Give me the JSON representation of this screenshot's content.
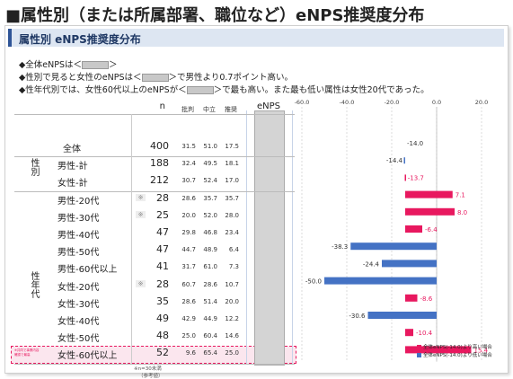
{
  "page": {
    "title": "■属性別（または所属部署、職位など）eNPS推奨度分布"
  },
  "card": {
    "title": "属性別 eNPS推奨度分布"
  },
  "notes": [
    {
      "pre": "◆全体eNPSは＜",
      "post": "＞"
    },
    {
      "pre": "◆性別で見ると女性のeNPSは＜",
      "post": "＞で男性より0.7ポイント高い。"
    },
    {
      "pre": "◆性年代別では、女性60代以上のeNPSが＜",
      "post": "＞で最も高い。また最も低い属性は女性20代であった。"
    }
  ],
  "table": {
    "headers": {
      "n": "n",
      "hihan": "批判",
      "churitsu": "中立",
      "suisho": "推奨",
      "enps": "eNPS"
    },
    "groups": {
      "gender": "性別",
      "age": "性年代"
    },
    "small_sample_mark": "※",
    "footnote_left": "※n=30未満\n（参考値）",
    "side_note": "※共同で事業内容確認で最高",
    "rows": [
      {
        "label": "全体",
        "n": 400,
        "hihan": "31.5",
        "churitsu": "51.0",
        "suisho": "17.5",
        "small": false
      },
      {
        "label": "男性-計",
        "n": 188,
        "hihan": "32.4",
        "churitsu": "49.5",
        "suisho": "18.1",
        "small": false
      },
      {
        "label": "女性-計",
        "n": 212,
        "hihan": "30.7",
        "churitsu": "52.4",
        "suisho": "17.0",
        "small": false
      },
      {
        "label": "男性-20代",
        "n": 28,
        "hihan": "28.6",
        "churitsu": "35.7",
        "suisho": "35.7",
        "small": true
      },
      {
        "label": "男性-30代",
        "n": 25,
        "hihan": "20.0",
        "churitsu": "52.0",
        "suisho": "28.0",
        "small": true
      },
      {
        "label": "男性-40代",
        "n": 47,
        "hihan": "29.8",
        "churitsu": "46.8",
        "suisho": "23.4",
        "small": false
      },
      {
        "label": "男性-50代",
        "n": 47,
        "hihan": "44.7",
        "churitsu": "48.9",
        "suisho": "6.4",
        "small": false
      },
      {
        "label": "男性-60代以上",
        "n": 41,
        "hihan": "31.7",
        "churitsu": "61.0",
        "suisho": "7.3",
        "small": false
      },
      {
        "label": "女性-20代",
        "n": 28,
        "hihan": "60.7",
        "churitsu": "28.6",
        "suisho": "10.7",
        "small": true
      },
      {
        "label": "女性-30代",
        "n": 35,
        "hihan": "28.6",
        "churitsu": "51.4",
        "suisho": "20.0",
        "small": false
      },
      {
        "label": "女性-40代",
        "n": 49,
        "hihan": "42.9",
        "churitsu": "44.9",
        "suisho": "12.2",
        "small": false
      },
      {
        "label": "女性-50代",
        "n": 48,
        "hihan": "25.0",
        "churitsu": "60.4",
        "suisho": "14.6",
        "small": false
      },
      {
        "label": "女性-60代以上",
        "n": 52,
        "hihan": "9.6",
        "churitsu": "65.4",
        "suisho": "25.0",
        "small": false
      }
    ],
    "colors": {
      "higher": "#e8185f",
      "lower": "#4472c4",
      "row_highlight": "#fbe6ee",
      "enps_mask": "#d4d4d4"
    }
  },
  "chart_data": {
    "type": "bar",
    "orientation": "horizontal",
    "baseline": -14.0,
    "categories": [
      "全体",
      "男性-計",
      "女性-計",
      "男性-20代",
      "男性-30代",
      "男性-40代",
      "男性-50代",
      "男性-60代以上",
      "女性-20代",
      "女性-30代",
      "女性-40代",
      "女性-50代",
      "女性-60代以上"
    ],
    "values": [
      -14.0,
      -14.4,
      -13.7,
      7.1,
      8.0,
      -6.4,
      -38.3,
      -24.4,
      -50.0,
      -8.6,
      -30.6,
      -10.4,
      15.4
    ],
    "value_labels": [
      "-14.0",
      "-14.4",
      "-13.7",
      "7.1",
      "8.0",
      "-6.4",
      "-38.3",
      "-24.4",
      "-50.0",
      "-8.6",
      "-30.6",
      "-10.4",
      "15.4"
    ],
    "xlim": [
      -60,
      20
    ],
    "xticks": [
      "-60.0",
      "-40.0",
      "-20.0",
      "0.0",
      "20.0"
    ],
    "xtick_values": [
      -60,
      -40,
      -20,
      0,
      20
    ],
    "grid": true,
    "legend": [
      {
        "label": "全体eNPS(-14.0)より高い場合",
        "color": "#e8185f"
      },
      {
        "label": "全体eNPS(-14.0)より低い場合",
        "color": "#4472c4"
      }
    ],
    "legend_position": "bottom-right"
  }
}
